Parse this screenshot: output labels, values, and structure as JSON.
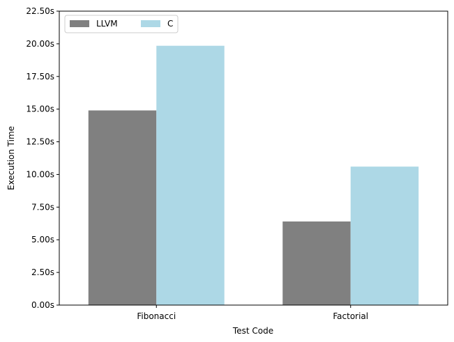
{
  "chart_data": {
    "type": "bar",
    "title": "",
    "xlabel": "Test Code",
    "ylabel": "Execution Time",
    "categories": [
      "Fibonacci",
      "Factorial"
    ],
    "series": [
      {
        "name": "LLVM",
        "values": [
          14.9,
          6.4
        ],
        "color": "#808080"
      },
      {
        "name": "C",
        "values": [
          19.85,
          10.6
        ],
        "color": "#add8e6"
      }
    ],
    "ylim": [
      0,
      22.5
    ],
    "yticks": [
      0,
      2.5,
      5,
      7.5,
      10,
      12.5,
      15,
      17.5,
      20,
      22.5
    ],
    "ytick_labels": [
      "0.00s",
      "2.50s",
      "5.00s",
      "7.50s",
      "10.00s",
      "12.50s",
      "15.00s",
      "17.50s",
      "20.00s",
      "22.50s"
    ],
    "grid": false,
    "legend_position": "top-left"
  }
}
